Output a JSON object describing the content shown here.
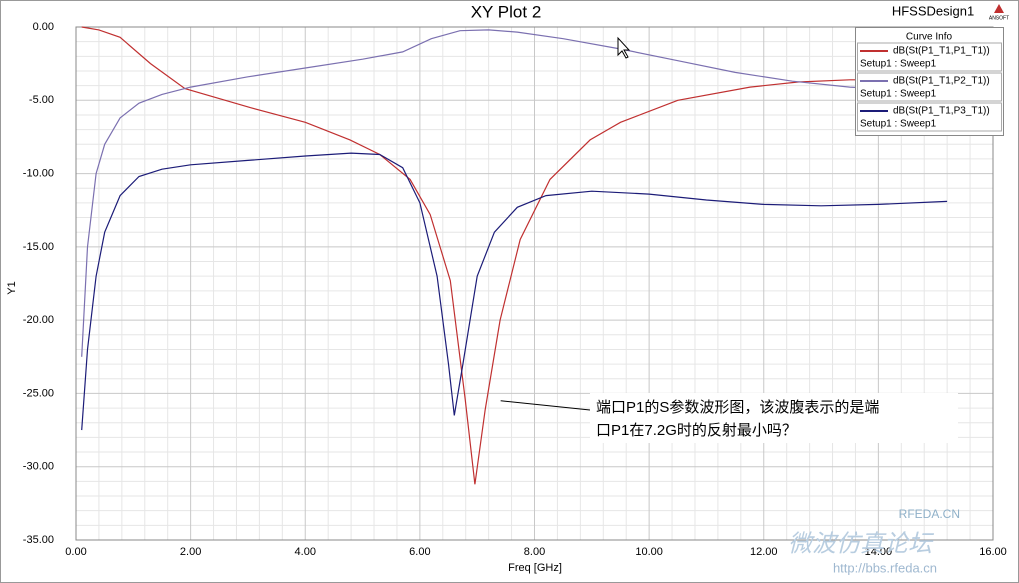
{
  "chart_data": {
    "type": "line",
    "title": "XY Plot 2",
    "design_name": "HFSSDesign1",
    "logo": "ANSOFT",
    "x_label": "Freq [GHz]",
    "y_label": "Y1",
    "legend_title": "Curve Info",
    "grid": true,
    "xlim": [
      0,
      16
    ],
    "ylim": [
      -35,
      0
    ],
    "xticks": [
      {
        "value": 0,
        "label": "0.00"
      },
      {
        "value": 2,
        "label": "2.00"
      },
      {
        "value": 4,
        "label": "4.00"
      },
      {
        "value": 6,
        "label": "6.00"
      },
      {
        "value": 8,
        "label": "8.00"
      },
      {
        "value": 10,
        "label": "10.00"
      },
      {
        "value": 12,
        "label": "12.00"
      },
      {
        "value": 14,
        "label": "14.00"
      },
      {
        "value": 16,
        "label": "16.00"
      }
    ],
    "yticks": [
      {
        "value": 0,
        "label": "0.00"
      },
      {
        "value": -5,
        "label": "-5.00"
      },
      {
        "value": -10,
        "label": "-10.00"
      },
      {
        "value": -15,
        "label": "-15.00"
      },
      {
        "value": -20,
        "label": "-20.00"
      },
      {
        "value": -25,
        "label": "-25.00"
      },
      {
        "value": -30,
        "label": "-30.00"
      },
      {
        "value": -35,
        "label": "-35.00"
      }
    ],
    "series": [
      {
        "name": "dB(St(P1_T1,P1_T1))",
        "setup": "Setup1 : Sweep1",
        "color": "#c03030",
        "x": [
          0.1,
          0.4,
          0.77,
          1.3,
          1.9,
          3.04,
          4.0,
          4.78,
          5.3,
          5.83,
          6.18,
          6.53,
          6.79,
          6.96,
          7.14,
          7.4,
          7.75,
          8.27,
          8.97,
          9.5,
          10.5,
          11.76,
          12.6,
          13.5,
          15.2
        ],
        "values": [
          0,
          -0.2,
          -0.7,
          -2.5,
          -4.2,
          -5.5,
          -6.5,
          -7.7,
          -8.7,
          -10.4,
          -12.8,
          -17.3,
          -25.4,
          -31.2,
          -26.1,
          -20,
          -14.5,
          -10.4,
          -7.7,
          -6.5,
          -5,
          -4.1,
          -3.75,
          -3.6,
          -3.6
        ]
      },
      {
        "name": "dB(St(P1_T1,P2_T1))",
        "setup": "Setup1 : Sweep1",
        "color": "#7b70b0",
        "x": [
          0.1,
          0.2,
          0.35,
          0.5,
          0.77,
          1.1,
          1.5,
          2,
          3,
          4,
          5,
          5.7,
          6.2,
          6.7,
          7.2,
          7.7,
          8.5,
          9.5,
          10.5,
          11.5,
          12.5,
          13.5,
          15.2
        ],
        "values": [
          -22.5,
          -15,
          -10,
          -8,
          -6.2,
          -5.2,
          -4.6,
          -4.1,
          -3.4,
          -2.8,
          -2.2,
          -1.7,
          -0.8,
          -0.25,
          -0.2,
          -0.35,
          -0.8,
          -1.5,
          -2.3,
          -3.1,
          -3.7,
          -4.1,
          -4.4
        ]
      },
      {
        "name": "dB(St(P1_T1,P3_T1))",
        "setup": "Setup1 : Sweep1",
        "color": "#1c1c78",
        "x": [
          0.1,
          0.2,
          0.35,
          0.5,
          0.77,
          1.1,
          1.5,
          2,
          3,
          4,
          4.8,
          5.3,
          5.7,
          6.0,
          6.3,
          6.5,
          6.6,
          6.75,
          7.0,
          7.3,
          7.7,
          8.2,
          9,
          10,
          11,
          12,
          13,
          14,
          15.2
        ],
        "values": [
          -27.5,
          -22,
          -17,
          -14,
          -11.5,
          -10.2,
          -9.7,
          -9.4,
          -9.1,
          -8.8,
          -8.6,
          -8.7,
          -9.6,
          -12,
          -17,
          -23,
          -26.5,
          -23,
          -17,
          -14,
          -12.3,
          -11.5,
          -11.2,
          -11.4,
          -11.8,
          -12.1,
          -12.2,
          -12.1,
          -11.9
        ]
      }
    ],
    "annotation": {
      "lines": [
        "端口P1的S参数波形图，该波腹表示的是端",
        "口P1在7.2G时的反射最小吗？"
      ],
      "x": 7.2,
      "y": -25.5
    },
    "watermark": {
      "site": "RFEDA.CN",
      "name": "微波仿真论坛",
      "url": "http://bbs.rfeda.cn"
    }
  }
}
